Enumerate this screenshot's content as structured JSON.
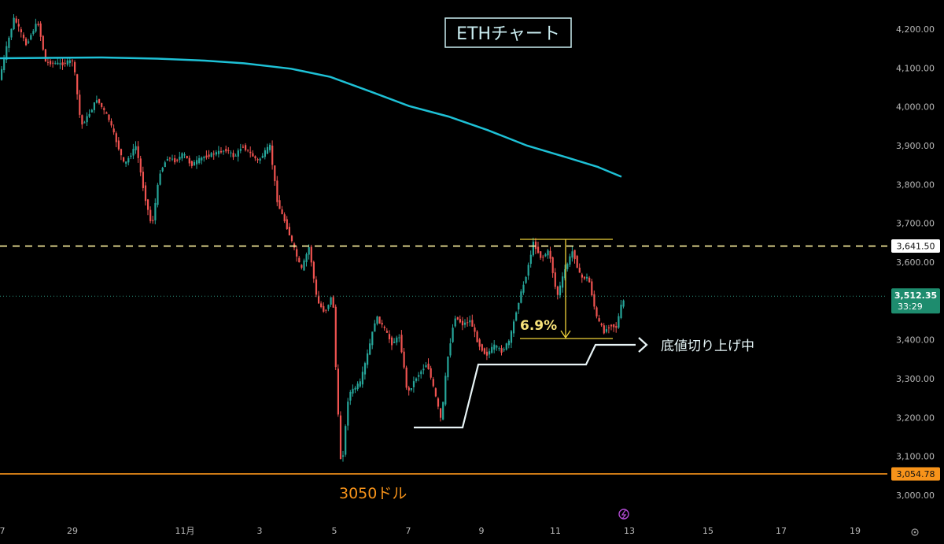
{
  "chart_data": {
    "type": "candlestick",
    "title": "ETHチャート",
    "y_axis": {
      "ticks": [
        "4,200.00",
        "4,100.00",
        "4,000.00",
        "3,900.00",
        "3,800.00",
        "3,700.00",
        "3,600.00",
        "3,500.00",
        "3,400.00",
        "3,300.00",
        "3,200.00",
        "3,100.00",
        "3,000.00"
      ],
      "tick_values": [
        4200,
        4100,
        4000,
        3900,
        3800,
        3700,
        3600,
        3500,
        3400,
        3300,
        3200,
        3100,
        3000
      ],
      "range": [
        2955,
        4245
      ]
    },
    "x_axis": {
      "ticks": [
        "7",
        "29",
        "11月",
        "3",
        "5",
        "7",
        "9",
        "11",
        "13",
        "15",
        "17",
        "19"
      ]
    },
    "price_labels": {
      "resistance": "3,641.50",
      "current": "3,512.35",
      "countdown": "33:29",
      "support": "3,054.78"
    },
    "levels": {
      "resistance": 3641.5,
      "current": 3512.35,
      "support": 3054.78
    },
    "moving_average": [
      [
        0,
        4125
      ],
      [
        60,
        4126
      ],
      [
        130,
        4127
      ],
      [
        200,
        4124
      ],
      [
        260,
        4119
      ],
      [
        310,
        4112
      ],
      [
        370,
        4098
      ],
      [
        420,
        4077
      ],
      [
        470,
        4040
      ],
      [
        520,
        4002
      ],
      [
        570,
        3975
      ],
      [
        620,
        3940
      ],
      [
        670,
        3900
      ],
      [
        720,
        3870
      ],
      [
        760,
        3845
      ],
      [
        790,
        3820
      ]
    ],
    "price_path": [
      [
        0,
        4060
      ],
      [
        10,
        4150
      ],
      [
        20,
        4230
      ],
      [
        35,
        4160
      ],
      [
        50,
        4220
      ],
      [
        60,
        4115
      ],
      [
        80,
        4110
      ],
      [
        95,
        4120
      ],
      [
        105,
        3950
      ],
      [
        115,
        3980
      ],
      [
        125,
        4020
      ],
      [
        140,
        3970
      ],
      [
        150,
        3910
      ],
      [
        160,
        3850
      ],
      [
        175,
        3900
      ],
      [
        185,
        3780
      ],
      [
        195,
        3690
      ],
      [
        205,
        3830
      ],
      [
        215,
        3870
      ],
      [
        225,
        3860
      ],
      [
        235,
        3880
      ],
      [
        245,
        3850
      ],
      [
        260,
        3870
      ],
      [
        275,
        3880
      ],
      [
        290,
        3890
      ],
      [
        300,
        3870
      ],
      [
        310,
        3900
      ],
      [
        320,
        3880
      ],
      [
        330,
        3860
      ],
      [
        345,
        3900
      ],
      [
        355,
        3750
      ],
      [
        365,
        3700
      ],
      [
        375,
        3640
      ],
      [
        385,
        3580
      ],
      [
        395,
        3640
      ],
      [
        405,
        3500
      ],
      [
        415,
        3470
      ],
      [
        425,
        3520
      ],
      [
        430,
        3270
      ],
      [
        436,
        3060
      ],
      [
        445,
        3260
      ],
      [
        460,
        3290
      ],
      [
        470,
        3370
      ],
      [
        480,
        3460
      ],
      [
        490,
        3430
      ],
      [
        500,
        3390
      ],
      [
        510,
        3410
      ],
      [
        520,
        3260
      ],
      [
        530,
        3300
      ],
      [
        545,
        3340
      ],
      [
        555,
        3260
      ],
      [
        563,
        3190
      ],
      [
        570,
        3340
      ],
      [
        580,
        3460
      ],
      [
        590,
        3440
      ],
      [
        600,
        3450
      ],
      [
        610,
        3390
      ],
      [
        620,
        3360
      ],
      [
        630,
        3385
      ],
      [
        640,
        3370
      ],
      [
        650,
        3400
      ],
      [
        660,
        3490
      ],
      [
        670,
        3560
      ],
      [
        680,
        3650
      ],
      [
        690,
        3610
      ],
      [
        700,
        3630
      ],
      [
        710,
        3510
      ],
      [
        720,
        3580
      ],
      [
        730,
        3630
      ],
      [
        740,
        3560
      ],
      [
        750,
        3560
      ],
      [
        760,
        3460
      ],
      [
        770,
        3420
      ],
      [
        778,
        3440
      ],
      [
        785,
        3430
      ],
      [
        793,
        3500
      ]
    ],
    "annotations": {
      "percent_label": "6.9%",
      "trend_label": "底値切り上げ中",
      "support_label": "3050ドル"
    }
  }
}
